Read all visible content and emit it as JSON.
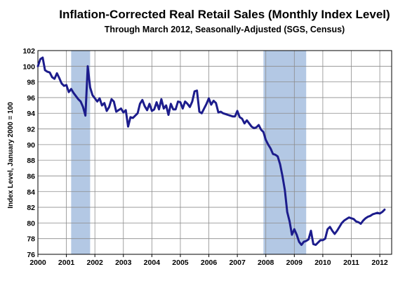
{
  "chart_data": {
    "type": "line",
    "title": "Inflation-Corrected Real Retail Sales (Monthly Index Level)",
    "subtitle": "Through March 2012, Seasonally-Adjusted (SGS, Census)",
    "ylabel": "Index Level, January 2000 = 100",
    "xlabel": "",
    "xlim": [
      "2000-01",
      "2012-06"
    ],
    "ylim": [
      76,
      102
    ],
    "yticks": [
      "76",
      "78",
      "80",
      "82",
      "84",
      "86",
      "88",
      "90",
      "92",
      "94",
      "96",
      "98",
      "100",
      "102"
    ],
    "xticks": [
      "2000",
      "2001",
      "2002",
      "2003",
      "2004",
      "2005",
      "2006",
      "2007",
      "2008",
      "2009",
      "2010",
      "2011",
      "2012"
    ],
    "grid": true,
    "line_color": "#1c1c8c",
    "recession_color": "#b3c8e4",
    "recessions": [
      {
        "start": "2001-03",
        "end": "2001-11"
      },
      {
        "start": "2007-12",
        "end": "2009-06"
      }
    ],
    "series": [
      {
        "x": [
          "2000-01",
          "2000-02",
          "2000-03",
          "2000-04",
          "2000-05",
          "2000-06",
          "2000-07",
          "2000-08",
          "2000-09",
          "2000-10",
          "2000-11",
          "2000-12",
          "2001-01",
          "2001-02",
          "2001-03",
          "2001-04",
          "2001-05",
          "2001-06",
          "2001-07",
          "2001-08",
          "2001-09",
          "2001-10",
          "2001-11",
          "2001-12",
          "2002-01",
          "2002-02",
          "2002-03",
          "2002-04",
          "2002-05",
          "2002-06",
          "2002-07",
          "2002-08",
          "2002-09",
          "2002-10",
          "2002-11",
          "2002-12",
          "2003-01",
          "2003-02",
          "2003-03",
          "2003-04",
          "2003-05",
          "2003-06",
          "2003-07",
          "2003-08",
          "2003-09",
          "2003-10",
          "2003-11",
          "2003-12",
          "2004-01",
          "2004-02",
          "2004-03",
          "2004-04",
          "2004-05",
          "2004-06",
          "2004-07",
          "2004-08",
          "2004-09",
          "2004-10",
          "2004-11",
          "2004-12",
          "2005-01",
          "2005-02",
          "2005-03",
          "2005-04",
          "2005-05",
          "2005-06",
          "2005-07",
          "2005-08",
          "2005-09",
          "2005-10",
          "2005-11",
          "2005-12",
          "2006-01",
          "2006-02",
          "2006-03",
          "2006-04",
          "2006-05",
          "2006-06",
          "2006-07",
          "2006-08",
          "2006-09",
          "2006-10",
          "2006-11",
          "2006-12",
          "2007-01",
          "2007-02",
          "2007-03",
          "2007-04",
          "2007-05",
          "2007-06",
          "2007-07",
          "2007-08",
          "2007-09",
          "2007-10",
          "2007-11",
          "2007-12",
          "2008-01",
          "2008-02",
          "2008-03",
          "2008-04",
          "2008-05",
          "2008-06",
          "2008-07",
          "2008-08",
          "2008-09",
          "2008-10",
          "2008-11",
          "2008-12",
          "2009-01",
          "2009-02",
          "2009-03",
          "2009-04",
          "2009-05",
          "2009-06",
          "2009-07",
          "2009-08",
          "2009-09",
          "2009-10",
          "2009-11",
          "2009-12",
          "2010-01",
          "2010-02",
          "2010-03",
          "2010-04",
          "2010-05",
          "2010-06",
          "2010-07",
          "2010-08",
          "2010-09",
          "2010-10",
          "2010-11",
          "2010-12",
          "2011-01",
          "2011-02",
          "2011-03",
          "2011-04",
          "2011-05",
          "2011-06",
          "2011-07",
          "2011-08",
          "2011-09",
          "2011-10",
          "2011-11",
          "2011-12",
          "2012-01",
          "2012-02",
          "2012-03"
        ],
        "values": [
          100.0,
          100.9,
          101.1,
          99.5,
          99.3,
          99.2,
          98.6,
          98.4,
          99.1,
          98.5,
          97.8,
          97.5,
          97.6,
          96.7,
          97.1,
          96.6,
          96.2,
          95.8,
          95.5,
          94.8,
          93.7,
          100.0,
          97.3,
          96.3,
          95.9,
          95.5,
          95.9,
          95.0,
          95.3,
          94.3,
          94.8,
          95.8,
          95.5,
          94.2,
          94.4,
          94.6,
          94.1,
          94.4,
          92.3,
          93.5,
          93.4,
          93.7,
          94.0,
          95.2,
          95.7,
          94.9,
          94.4,
          95.2,
          94.3,
          94.5,
          95.4,
          94.5,
          95.8,
          94.6,
          95.0,
          93.8,
          95.2,
          94.5,
          94.5,
          95.5,
          95.4,
          94.6,
          95.5,
          95.2,
          94.8,
          95.5,
          96.8,
          96.9,
          94.2,
          94.0,
          94.6,
          95.2,
          95.9,
          95.1,
          95.6,
          95.3,
          94.1,
          94.2,
          94.0,
          93.9,
          93.8,
          93.7,
          93.6,
          93.6,
          94.3,
          93.5,
          93.3,
          92.7,
          93.1,
          92.7,
          92.3,
          92.1,
          92.2,
          92.5,
          91.9,
          91.6,
          90.6,
          90.0,
          89.5,
          88.8,
          88.7,
          88.5,
          87.5,
          86.0,
          84.2,
          81.4,
          80.2,
          78.5,
          79.2,
          78.5,
          77.6,
          77.2,
          77.6,
          77.7,
          77.9,
          79.0,
          77.3,
          77.2,
          77.5,
          77.8,
          77.8,
          78.0,
          79.2,
          79.5,
          79.0,
          78.6,
          79.0,
          79.5,
          80.0,
          80.3,
          80.5,
          80.7,
          80.6,
          80.5,
          80.2,
          80.1,
          79.9,
          80.3,
          80.6,
          80.8,
          80.9,
          81.1,
          81.2,
          81.3,
          81.2,
          81.4,
          81.7
        ]
      }
    ]
  }
}
